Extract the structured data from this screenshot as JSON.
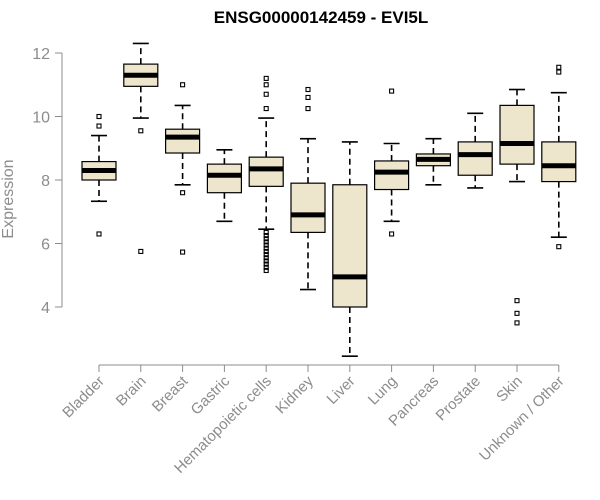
{
  "chart_data": {
    "type": "boxplot",
    "title": "ENSG00000142459 - EVI5L",
    "xlabel": "",
    "ylabel": "Expression",
    "ylim": [
      2.4,
      12.6
    ],
    "yticks": [
      4,
      6,
      8,
      10,
      12
    ],
    "grid": false,
    "legend": "none",
    "box_fill": "#ede6cc",
    "axis_color": "#8c8c8c",
    "categories": [
      "Bladder",
      "Brain",
      "Breast",
      "Gastric",
      "Hematopoietic cells",
      "Kidney",
      "Liver",
      "Lung",
      "Pancreas",
      "Prostate",
      "Skin",
      "Unknown / Other"
    ],
    "boxes": [
      {
        "category": "Bladder",
        "whisker_low": 7.33,
        "q1": 8.0,
        "median": 8.3,
        "q3": 8.58,
        "whisker_high": 9.4,
        "outliers": [
          6.3,
          9.7,
          10.0
        ]
      },
      {
        "category": "Brain",
        "whisker_low": 9.95,
        "q1": 10.95,
        "median": 11.3,
        "q3": 11.65,
        "whisker_high": 12.3,
        "outliers": [
          9.55,
          5.75
        ]
      },
      {
        "category": "Breast",
        "whisker_low": 7.85,
        "q1": 8.85,
        "median": 9.35,
        "q3": 9.6,
        "whisker_high": 10.35,
        "outliers": [
          11.0,
          7.6,
          5.73
        ]
      },
      {
        "category": "Gastric",
        "whisker_low": 6.7,
        "q1": 7.6,
        "median": 8.15,
        "q3": 8.5,
        "whisker_high": 8.95,
        "outliers": []
      },
      {
        "category": "Hematopoietic cells",
        "whisker_low": 6.45,
        "q1": 7.8,
        "median": 8.35,
        "q3": 8.72,
        "whisker_high": 9.95,
        "outliers": [
          10.25,
          10.7,
          11.0,
          11.2,
          6.35,
          6.25,
          6.15,
          6.05,
          5.95,
          5.85,
          5.75,
          5.65,
          5.55,
          5.45,
          5.35,
          5.25,
          5.15
        ]
      },
      {
        "category": "Kidney",
        "whisker_low": 4.55,
        "q1": 6.35,
        "median": 6.9,
        "q3": 7.9,
        "whisker_high": 9.3,
        "outliers": [
          10.25,
          10.6,
          10.85
        ]
      },
      {
        "category": "Liver",
        "whisker_low": 2.45,
        "q1": 4.0,
        "median": 4.95,
        "q3": 7.85,
        "whisker_high": 9.2,
        "outliers": []
      },
      {
        "category": "Lung",
        "whisker_low": 6.7,
        "q1": 7.7,
        "median": 8.25,
        "q3": 8.6,
        "whisker_high": 9.15,
        "outliers": [
          10.8,
          6.3
        ]
      },
      {
        "category": "Pancreas",
        "whisker_low": 7.85,
        "q1": 8.45,
        "median": 8.65,
        "q3": 8.82,
        "whisker_high": 9.3,
        "outliers": []
      },
      {
        "category": "Prostate",
        "whisker_low": 7.75,
        "q1": 8.15,
        "median": 8.8,
        "q3": 9.2,
        "whisker_high": 10.1,
        "outliers": []
      },
      {
        "category": "Skin",
        "whisker_low": 7.95,
        "q1": 8.5,
        "median": 9.15,
        "q3": 10.35,
        "whisker_high": 10.85,
        "outliers": [
          4.2,
          3.8,
          3.5
        ]
      },
      {
        "category": "Unknown / Other",
        "whisker_low": 6.2,
        "q1": 7.95,
        "median": 8.45,
        "q3": 9.2,
        "whisker_high": 10.75,
        "outliers": [
          11.55,
          11.4,
          5.9
        ]
      }
    ]
  }
}
